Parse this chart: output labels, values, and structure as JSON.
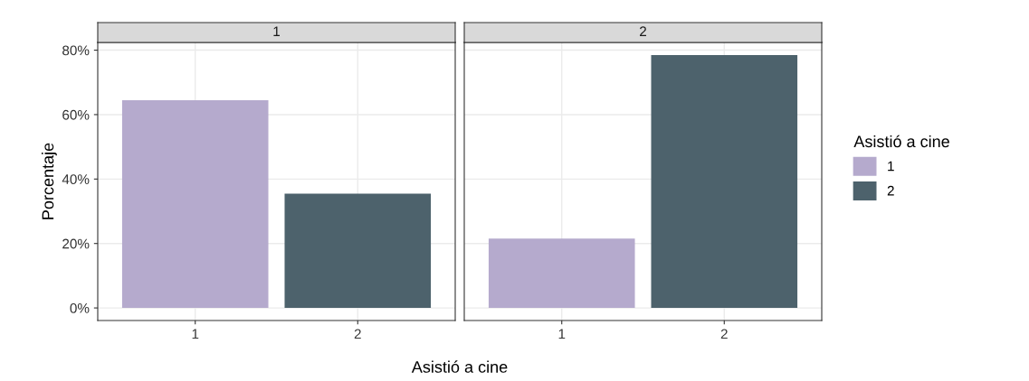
{
  "chart_data": [
    {
      "type": "bar",
      "title": "1",
      "ylabel": "Porcentaje",
      "xlabel": "Asistió a cine",
      "legend_title": "Asistió a cine",
      "legend": "right",
      "categories": [
        "1",
        "2"
      ],
      "series": [
        {
          "name": "1",
          "color": "#b5aacd",
          "values": [
            64.5,
            null
          ]
        },
        {
          "name": "2",
          "color": "#4d626c",
          "values": [
            null,
            35.5
          ]
        }
      ],
      "ylim": [
        -3.9,
        82.4
      ],
      "yticks": [
        {
          "value": 0,
          "label": "0%"
        },
        {
          "value": 20,
          "label": "20%"
        },
        {
          "value": 40,
          "label": "40%"
        },
        {
          "value": 60,
          "label": "60%"
        },
        {
          "value": 80,
          "label": "80%"
        }
      ],
      "grid": true
    },
    {
      "type": "bar",
      "title": "2",
      "categories": [
        "1",
        "2"
      ],
      "series": [
        {
          "color": "#b5aacd",
          "values": [
            21.5,
            null
          ]
        },
        {
          "color": "#4d626c",
          "values": [
            null,
            78.5
          ]
        }
      ],
      "ylim": [
        -3.9,
        82.4
      ],
      "yticks": [
        {
          "value": 0,
          "label": null
        },
        {
          "value": 20,
          "label": null
        },
        {
          "value": 40,
          "label": null
        },
        {
          "value": 60,
          "label": null
        },
        {
          "value": 80,
          "label": null
        }
      ],
      "grid": true,
      "tick_labels": "x"
    }
  ]
}
